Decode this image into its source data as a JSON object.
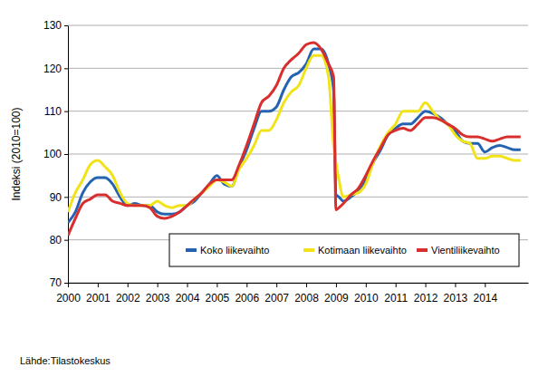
{
  "chart_data": {
    "type": "line",
    "ylabel": "Indeksi (2010=100)",
    "source": "Lähde:Tilastokeskus",
    "x": [
      2000,
      2000.25,
      2000.5,
      2000.75,
      2001,
      2001.25,
      2001.5,
      2001.75,
      2002,
      2002.25,
      2002.5,
      2002.75,
      2003,
      2003.25,
      2003.5,
      2003.75,
      2004,
      2004.25,
      2004.5,
      2004.75,
      2005,
      2005.25,
      2005.5,
      2005.75,
      2006,
      2006.25,
      2006.5,
      2006.75,
      2007,
      2007.25,
      2007.5,
      2007.75,
      2008,
      2008.25,
      2008.5,
      2008.75,
      2008.92,
      2009.0,
      2009.1,
      2009.25,
      2009.5,
      2009.75,
      2010,
      2010.25,
      2010.5,
      2010.75,
      2011,
      2011.25,
      2011.5,
      2011.75,
      2012,
      2012.25,
      2012.5,
      2012.75,
      2013,
      2013.25,
      2013.5,
      2013.75,
      2014,
      2014.25,
      2014.5,
      2014.75,
      2015,
      2015.2
    ],
    "series": [
      {
        "name": "Koko liikevaihto",
        "color": "#2463b0",
        "values": [
          84,
          86.5,
          91,
          93.5,
          94.5,
          94.5,
          93,
          90,
          88,
          88.5,
          88,
          88,
          86.5,
          86,
          86,
          86.5,
          88,
          89,
          91,
          93,
          95,
          93,
          92.5,
          97,
          101,
          106,
          110,
          110,
          111,
          115,
          118,
          119,
          121,
          124.5,
          124.5,
          121,
          115,
          90.5,
          90,
          89,
          90,
          91.5,
          94,
          98,
          101,
          104.5,
          106,
          107,
          107,
          108.5,
          110,
          109.5,
          108.5,
          107,
          105.5,
          103,
          102.5,
          102.5,
          100.5,
          101.5,
          102,
          101.5,
          101,
          101
        ]
      },
      {
        "name": "Kotimaan liikevaihto",
        "color": "#f2e318",
        "values": [
          86.5,
          91,
          94,
          97.5,
          98.5,
          97,
          95,
          91,
          88.5,
          88,
          88,
          88,
          89,
          88,
          87.5,
          88,
          88,
          89.5,
          91,
          92.5,
          94,
          93.5,
          92.5,
          96.5,
          99,
          102,
          105.5,
          105.5,
          108,
          112,
          114.5,
          116,
          120,
          123,
          123,
          118,
          102,
          98,
          94,
          90,
          90.5,
          91,
          93,
          98,
          102,
          105,
          107,
          110,
          110,
          110,
          112,
          110,
          108,
          107,
          104.5,
          103,
          102.5,
          99,
          99,
          99.5,
          99.5,
          99,
          98.5,
          98.5
        ]
      },
      {
        "name": "Vientiliikevaihto",
        "color": "#d92e2e",
        "values": [
          81,
          85,
          88.5,
          89.5,
          90.5,
          90.5,
          89,
          88.5,
          88,
          88,
          88,
          87.5,
          85.5,
          85,
          85.5,
          86.5,
          88,
          89.5,
          91,
          93,
          94,
          94,
          94,
          97.5,
          102,
          107,
          112,
          113.5,
          116,
          120,
          122,
          123.5,
          125.5,
          126,
          124.5,
          121,
          118,
          87,
          87.5,
          88.5,
          90.5,
          92,
          95,
          98.5,
          101.5,
          104.5,
          105.5,
          106,
          105.5,
          107,
          108.5,
          108.5,
          108,
          107,
          106,
          104.5,
          104,
          104,
          103.5,
          103,
          103.5,
          104,
          104,
          104
        ]
      }
    ],
    "xlim": [
      2000,
      2015.45
    ],
    "xticks": [
      2000,
      2001,
      2002,
      2003,
      2004,
      2005,
      2006,
      2007,
      2008,
      2009,
      2010,
      2011,
      2012,
      2013,
      2014
    ],
    "ylim": [
      70,
      130
    ],
    "yticks": [
      70,
      80,
      90,
      100,
      110,
      120,
      130
    ],
    "grid": true,
    "legend": "lower right"
  }
}
